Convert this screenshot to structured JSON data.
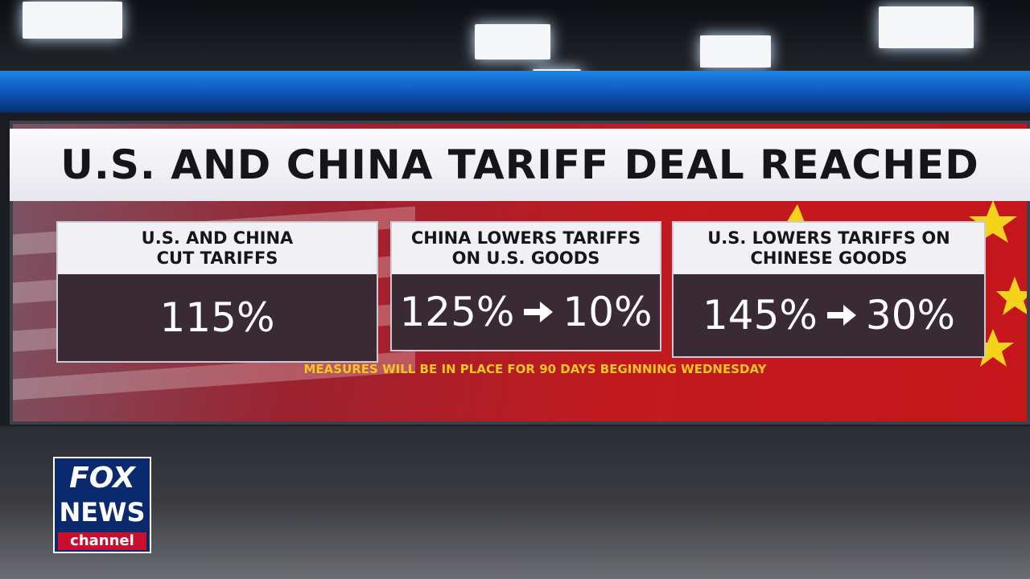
{
  "title": "U.S. AND CHINA TARIFF DEAL REACHED",
  "panels": [
    {
      "header": "U.S. AND CHINA CUT TARIFFS",
      "values": [
        "115%"
      ]
    },
    {
      "header": "CHINA LOWERS TARIFFS ON U.S. GOODS",
      "values": [
        "125%",
        "10%"
      ]
    },
    {
      "header": "U.S. LOWERS TARIFFS ON CHINESE GOODS",
      "values": [
        "145%",
        "30%"
      ]
    }
  ],
  "footnote": "MEASURES WILL BE IN PLACE FOR 90 DAYS BEGINNING WEDNESDAY",
  "logo": {
    "line1": "FOX",
    "line2": "NEWS",
    "line3": "channel"
  }
}
